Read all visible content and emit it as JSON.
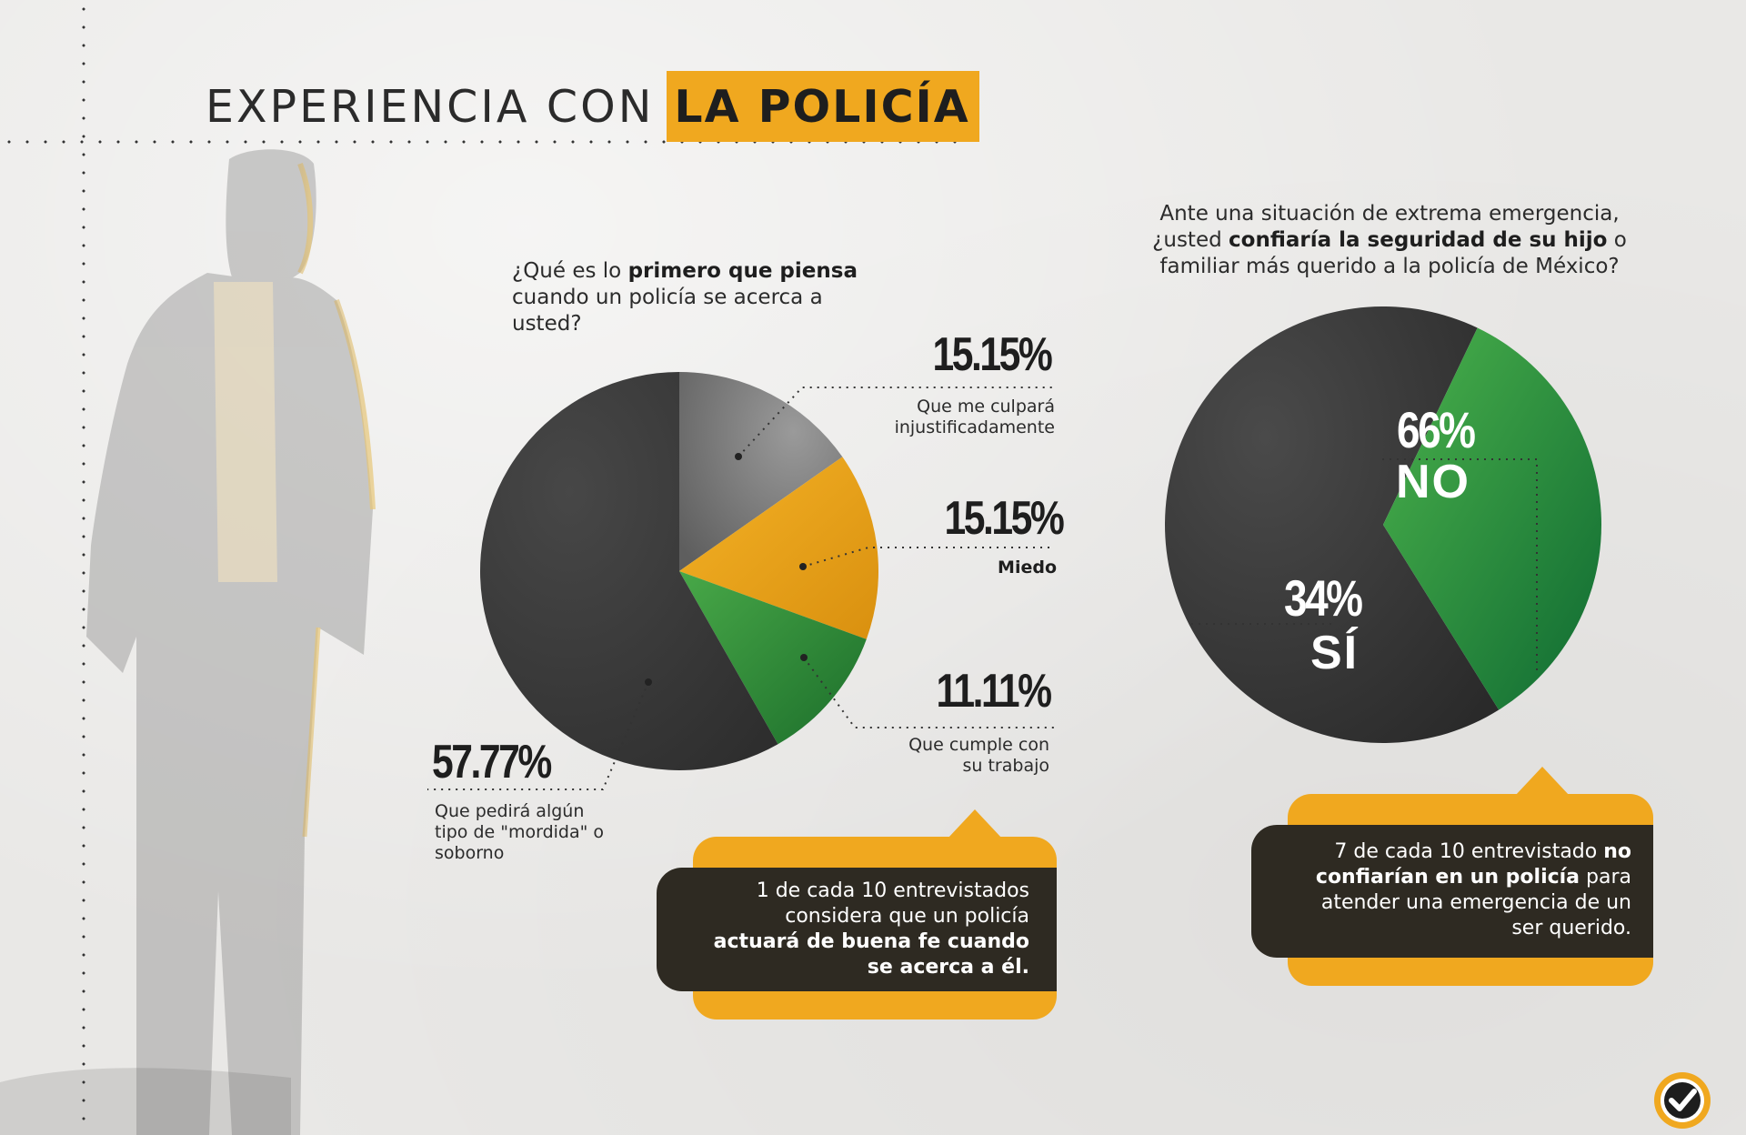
{
  "title": {
    "part1": "EXPERIENCIA CON",
    "part2": "LA POLICÍA"
  },
  "question1": {
    "pre": "¿Qué es lo ",
    "bold": "primero que piensa",
    "post": "cuando un policía se acerca a usted?"
  },
  "question2": {
    "pre": "Ante una situación de extrema emergencia, ¿usted ",
    "bold": "confiaría la seguridad de su hijo",
    "post": " o familiar más querido a la policía de México?"
  },
  "chart_data": [
    {
      "type": "pie",
      "slices": [
        {
          "label": "Que me culpará injustificadamente",
          "value": 15.15,
          "value_label": "15.15%",
          "color": "#8e8e8e"
        },
        {
          "label": "Miedo",
          "value": 15.15,
          "value_label": "15.15%",
          "color": "#f0a81f"
        },
        {
          "label": "Que cumple con su trabajo",
          "value": 11.11,
          "value_label": "11.11%",
          "color": "#3f9e3f"
        },
        {
          "label": "Que pedirá algún tipo de \"mordida\" o soborno",
          "value": 57.77,
          "value_label": "57.77%",
          "color": "#3b3b3b"
        }
      ]
    },
    {
      "type": "pie",
      "slices": [
        {
          "label": "NO",
          "value": 66,
          "value_label": "66%",
          "color": "#3b3b3b"
        },
        {
          "label": "SÍ",
          "value": 34,
          "value_label": "34%",
          "color": "#3f9e3f"
        }
      ]
    }
  ],
  "callout1": {
    "line1": "1 de cada 10 entrevistados",
    "line2": "considera que un policía",
    "bold1": "actuará de buena fe cuando",
    "bold2": "se acerca a él."
  },
  "callout2": {
    "pre": "7 de cada 10 entrevistado ",
    "bold": "no confiarían en un policía",
    "post": " para atender una emergencia de un ser querido."
  },
  "colors": {
    "accent": "#f0a81f",
    "dark": "#3b3b3b",
    "green": "#3f9e3f",
    "callout_dark": "#2e2a22"
  },
  "logo_icon": "checkmark-circle-icon"
}
